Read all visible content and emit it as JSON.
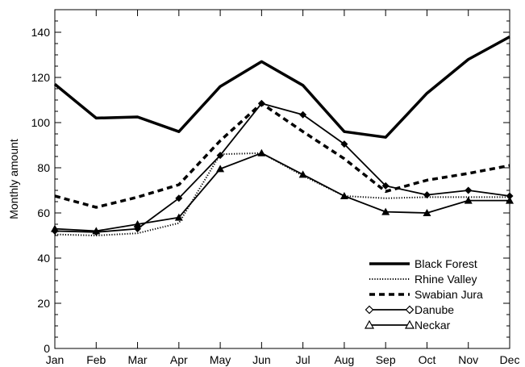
{
  "chart_data": {
    "type": "line",
    "title": "",
    "xlabel": "",
    "ylabel": "Monthly amount",
    "categories": [
      "Jan",
      "Feb",
      "Mar",
      "Apr",
      "May",
      "Jun",
      "Jul",
      "Aug",
      "Sep",
      "Oct",
      "Nov",
      "Dec"
    ],
    "ylim": [
      0,
      150
    ],
    "yticks": [
      0,
      20,
      40,
      60,
      80,
      100,
      120,
      140
    ],
    "grid": false,
    "legend_position": "bottom-right",
    "series": [
      {
        "name": "Black Forest",
        "style": "thick-solid",
        "marker": "none",
        "values": [
          117,
          102,
          102.5,
          96,
          116,
          127,
          116.5,
          96,
          93.5,
          113,
          128,
          138
        ]
      },
      {
        "name": "Rhine Valley",
        "style": "dotted",
        "marker": "none",
        "values": [
          50.5,
          50,
          51,
          55.5,
          86,
          86.5,
          76.5,
          67.5,
          66.5,
          67,
          67,
          67
        ]
      },
      {
        "name": "Swabian Jura",
        "style": "dashed",
        "marker": "none",
        "values": [
          67.5,
          62.5,
          67,
          72.5,
          92,
          108.5,
          96,
          84,
          69.5,
          74.5,
          77.5,
          81
        ]
      },
      {
        "name": "Danube",
        "style": "solid",
        "marker": "diamond",
        "values": [
          52,
          51.5,
          53,
          66.5,
          85.5,
          108.5,
          103.5,
          90.5,
          72,
          68,
          70,
          67.5
        ]
      },
      {
        "name": "Neckar",
        "style": "solid",
        "marker": "triangle",
        "values": [
          53,
          52,
          55,
          58,
          79.5,
          86.5,
          77,
          67.5,
          60.5,
          60,
          65.5,
          65.5
        ]
      }
    ]
  }
}
